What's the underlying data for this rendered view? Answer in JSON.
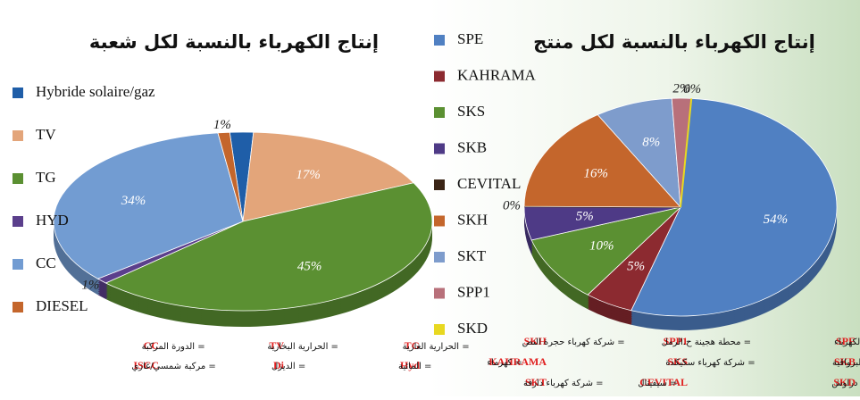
{
  "chart_data": [
    {
      "type": "pie",
      "title": "إنتاج الكهرباء بالنسبة لكل شعبة",
      "categories": [
        "Hybride solaire/gaz",
        "TV",
        "TG",
        "HYD",
        "CC",
        "DIESEL"
      ],
      "values": [
        2,
        17,
        45,
        1,
        34,
        1
      ],
      "value_labels": [
        "2%",
        "17%",
        "45%",
        "1%",
        "34%",
        "1%"
      ],
      "colors": [
        "#1f5ea8",
        "#e3a57a",
        "#5b9032",
        "#5b3f8c",
        "#729cd2",
        "#c4662c"
      ],
      "notes": [
        {
          "key": "TG",
          "text": "= الحرارية الغازية"
        },
        {
          "key": "TV",
          "text": "= الحرارية البخارية"
        },
        {
          "key": "CC",
          "text": "= الدورة المركبة"
        },
        {
          "key": "Hyd",
          "text": "= المائية"
        },
        {
          "key": "Di",
          "text": "= الديزل"
        },
        {
          "key": "ISCC",
          "text": "= مركبة شمسي/غازي"
        }
      ]
    },
    {
      "type": "pie",
      "title": "إنتاج الكهرباء بالنسبة لكل منتج",
      "categories": [
        "SPE",
        "KAHRAMA",
        "SKS",
        "SKB",
        "CEVITAL",
        "SKH",
        "SKT",
        "SPP1",
        "SKD"
      ],
      "values": [
        54,
        5,
        10,
        5,
        0,
        16,
        8,
        2,
        0
      ],
      "value_labels": [
        "54%",
        "5%",
        "10%",
        "5%",
        "0%",
        "16%",
        "8%",
        "2%",
        "0%"
      ],
      "colors": [
        "#5080c2",
        "#8c2a30",
        "#5b9032",
        "#4e3a86",
        "#3a2415",
        "#c4662c",
        "#7e9ccc",
        "#b8707a",
        "#e8d820"
      ],
      "notes": [
        {
          "key": "SPE",
          "text": "= الشركة الجزائرية لانتاج الكهرباء"
        },
        {
          "key": "SPP1",
          "text": "= محطة هجينة ح.الرمل"
        },
        {
          "key": "SKH",
          "text": "= شركة كهرباء حجرة النص"
        },
        {
          "key": "SKB",
          "text": "= شركة كهرباء البرواقية"
        },
        {
          "key": "SKS",
          "text": "= شركة كهرباء سكيكدة"
        },
        {
          "key": "KAHRAMA",
          "text": "= كهرماء"
        },
        {
          "key": "SKD",
          "text": "= شركة كهرباء ى دراوش"
        },
        {
          "key": "CEVITAL",
          "text": "= سيفيتال"
        },
        {
          "key": "SKT",
          "text": "= شركة كهرباء دارفة"
        }
      ]
    }
  ]
}
